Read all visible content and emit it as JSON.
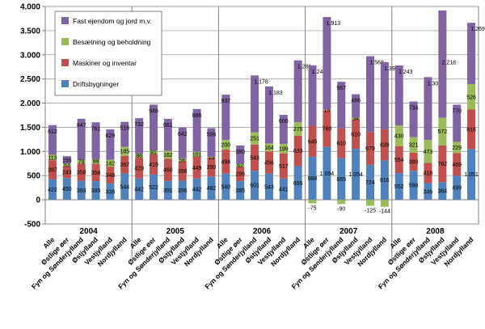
{
  "chart_data": {
    "type": "bar",
    "stacked": true,
    "ylim": [
      -500,
      4000
    ],
    "y_ticks": [
      -500,
      0,
      500,
      1000,
      1500,
      2000,
      2500,
      3000,
      3500,
      4000
    ],
    "y_tick_labels": [
      "-500",
      "0",
      "500",
      "1.000",
      "1.500",
      "2.000",
      "2.500",
      "3.000",
      "3.500",
      "4.000"
    ],
    "grid": true,
    "legend_position": "top-left",
    "region_labels": [
      "Alle",
      "Østlige øer",
      "Fyn og Sønderjylland",
      "Østjylland",
      "Vestjylland",
      "Nordjylland"
    ],
    "groups": [
      {
        "year": "2004",
        "bars": [
          {
            "values": [
              422,
              397,
              113,
              612
            ]
          },
          {
            "values": [
              450,
              243,
              53,
              155
            ]
          },
          {
            "values": [
              393,
              358,
              79,
              847
            ]
          },
          {
            "values": [
              385,
              358,
              99,
              761
            ]
          },
          {
            "values": [
              338,
              348,
              142,
              629
            ]
          },
          {
            "values": [
              544,
              367,
              185,
              516
            ]
          }
        ]
      },
      {
        "year": "2005",
        "bars": [
          {
            "values": [
              442,
              429,
              86,
              732
            ]
          },
          {
            "values": [
              522,
              419,
              81,
              946
            ]
          },
          {
            "values": [
              391,
              460,
              162,
              661
            ]
          },
          {
            "values": [
              396,
              398,
              56,
              642
            ]
          },
          {
            "values": [
              442,
              449,
              101,
              886
            ]
          },
          {
            "values": [
              482,
              390,
              15,
              596
            ]
          }
        ]
      },
      {
        "year": "2006",
        "bars": [
          {
            "values": [
              540,
              498,
              200,
              937
            ]
          },
          {
            "values": [
              385,
              296,
              62,
              380
            ]
          },
          {
            "values": [
              601,
              543,
              251,
              1178
            ]
          },
          {
            "values": [
              543,
              456,
              164,
              1183
            ]
          },
          {
            "values": [
              441,
              517,
              199,
              600
            ]
          },
          {
            "values": [
              695,
              633,
              275,
              1281
            ]
          }
        ]
      },
      {
        "year": "2007",
        "bars": [
          {
            "values": [
              888,
              645,
              -75,
              1249
            ]
          },
          {
            "values": [
              1094,
              760,
              15,
              1913
            ]
          },
          {
            "values": [
              865,
              610,
              -90,
              967
            ]
          },
          {
            "values": [
              1054,
              610,
              34,
              486
            ]
          },
          {
            "values": [
              724,
              679,
              -125,
              1568
            ]
          },
          {
            "values": [
              816,
              639,
              -144,
              1391
            ]
          }
        ]
      },
      {
        "year": "2008",
        "bars": [
          {
            "values": [
              552,
              554,
              430,
              1243
            ]
          },
          {
            "values": [
              598,
              380,
              321,
              734
            ]
          },
          {
            "values": [
              346,
              418,
              473,
              1302
            ]
          },
          {
            "values": [
              364,
              762,
              572,
              2218
            ]
          },
          {
            "values": [
              499,
              469,
              229,
              770
            ]
          },
          {
            "values": [
              1051,
              816,
              526,
              1269
            ]
          }
        ]
      }
    ],
    "series": [
      {
        "name": "Driftsbygninger",
        "color": "#4f81bd"
      },
      {
        "name": "Maskiner og inventar",
        "color": "#c0504d"
      },
      {
        "name": "Besætning og beholdning",
        "color": "#9bbb59"
      },
      {
        "name": "Fast ejendom og jord m.v.",
        "color": "#8064a2"
      }
    ]
  }
}
